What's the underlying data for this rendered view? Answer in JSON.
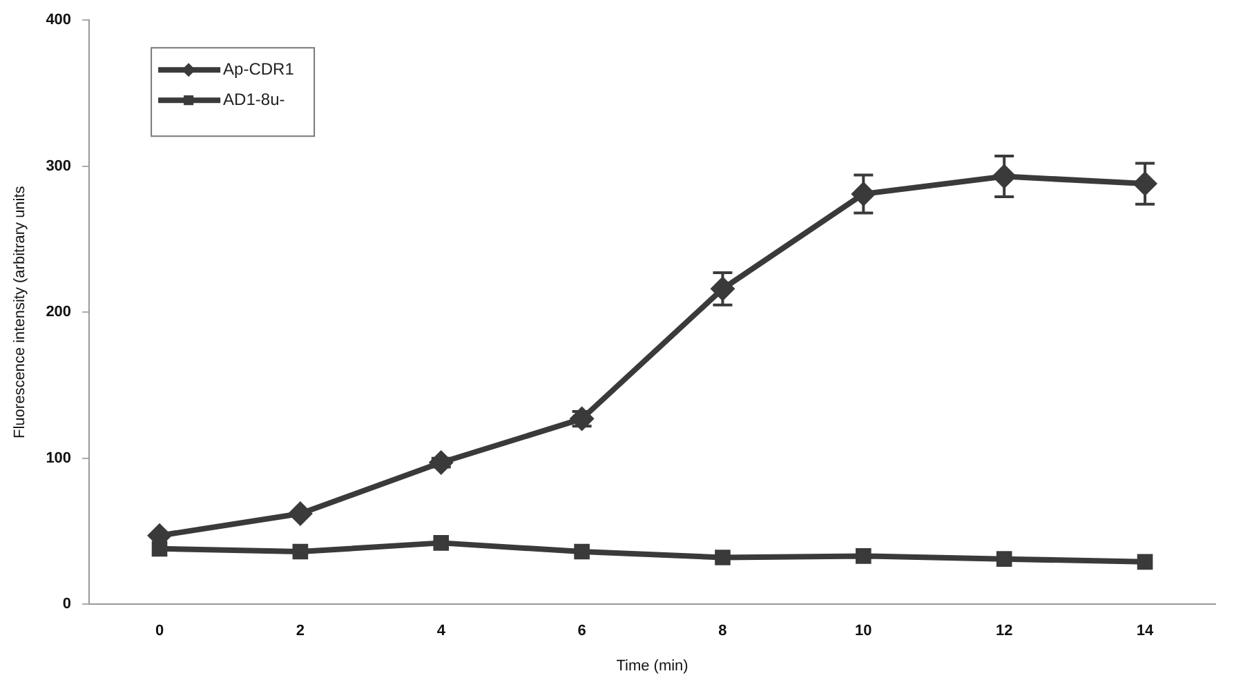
{
  "chart_data": {
    "type": "line",
    "xlabel": "Time (min)",
    "ylabel": "Fluorescence intensity (arbitrary units",
    "categories": [
      "0",
      "2",
      "4",
      "6",
      "8",
      "10",
      "12",
      "14"
    ],
    "series": [
      {
        "name": "Ap-CDR1",
        "color": "#3a3a3a",
        "marker": "diamond",
        "values": [
          47,
          62,
          97,
          127,
          216,
          281,
          293,
          288
        ],
        "errors": [
          null,
          null,
          3,
          5,
          11,
          13,
          14,
          14
        ]
      },
      {
        "name": "AD1-8u-",
        "color": "#3a3a3a",
        "marker": "square",
        "values": [
          38,
          36,
          42,
          36,
          32,
          33,
          31,
          29
        ]
      }
    ],
    "ylim": [
      0,
      400
    ],
    "yticks": [
      0,
      100,
      200,
      300,
      400
    ],
    "grid": false,
    "legend": "top left",
    "line_style": "solid"
  }
}
